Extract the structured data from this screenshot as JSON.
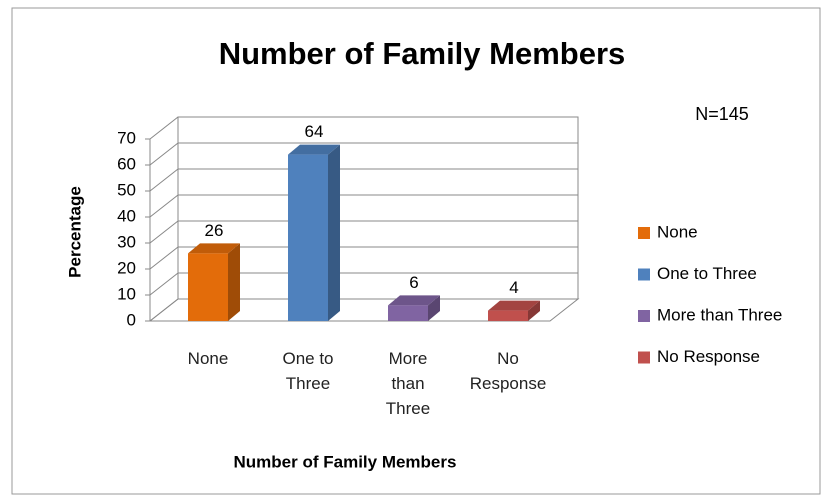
{
  "chart_data": {
    "type": "bar3d",
    "title": "Number of Family Members",
    "annotation": "N=145",
    "x_label": "Number of Family Members",
    "y_label": "Percentage",
    "categories": [
      "None",
      "One to Three",
      "More than Three",
      "No Response"
    ],
    "values": [
      26,
      64,
      6,
      4
    ],
    "colors": [
      "#e36c0a",
      "#4f81bd",
      "#8064a2",
      "#c0504d"
    ],
    "ylim": [
      0,
      70
    ],
    "yticks": [
      0,
      10,
      20,
      30,
      40,
      50,
      60,
      70
    ],
    "grid": true,
    "legend": "right"
  }
}
